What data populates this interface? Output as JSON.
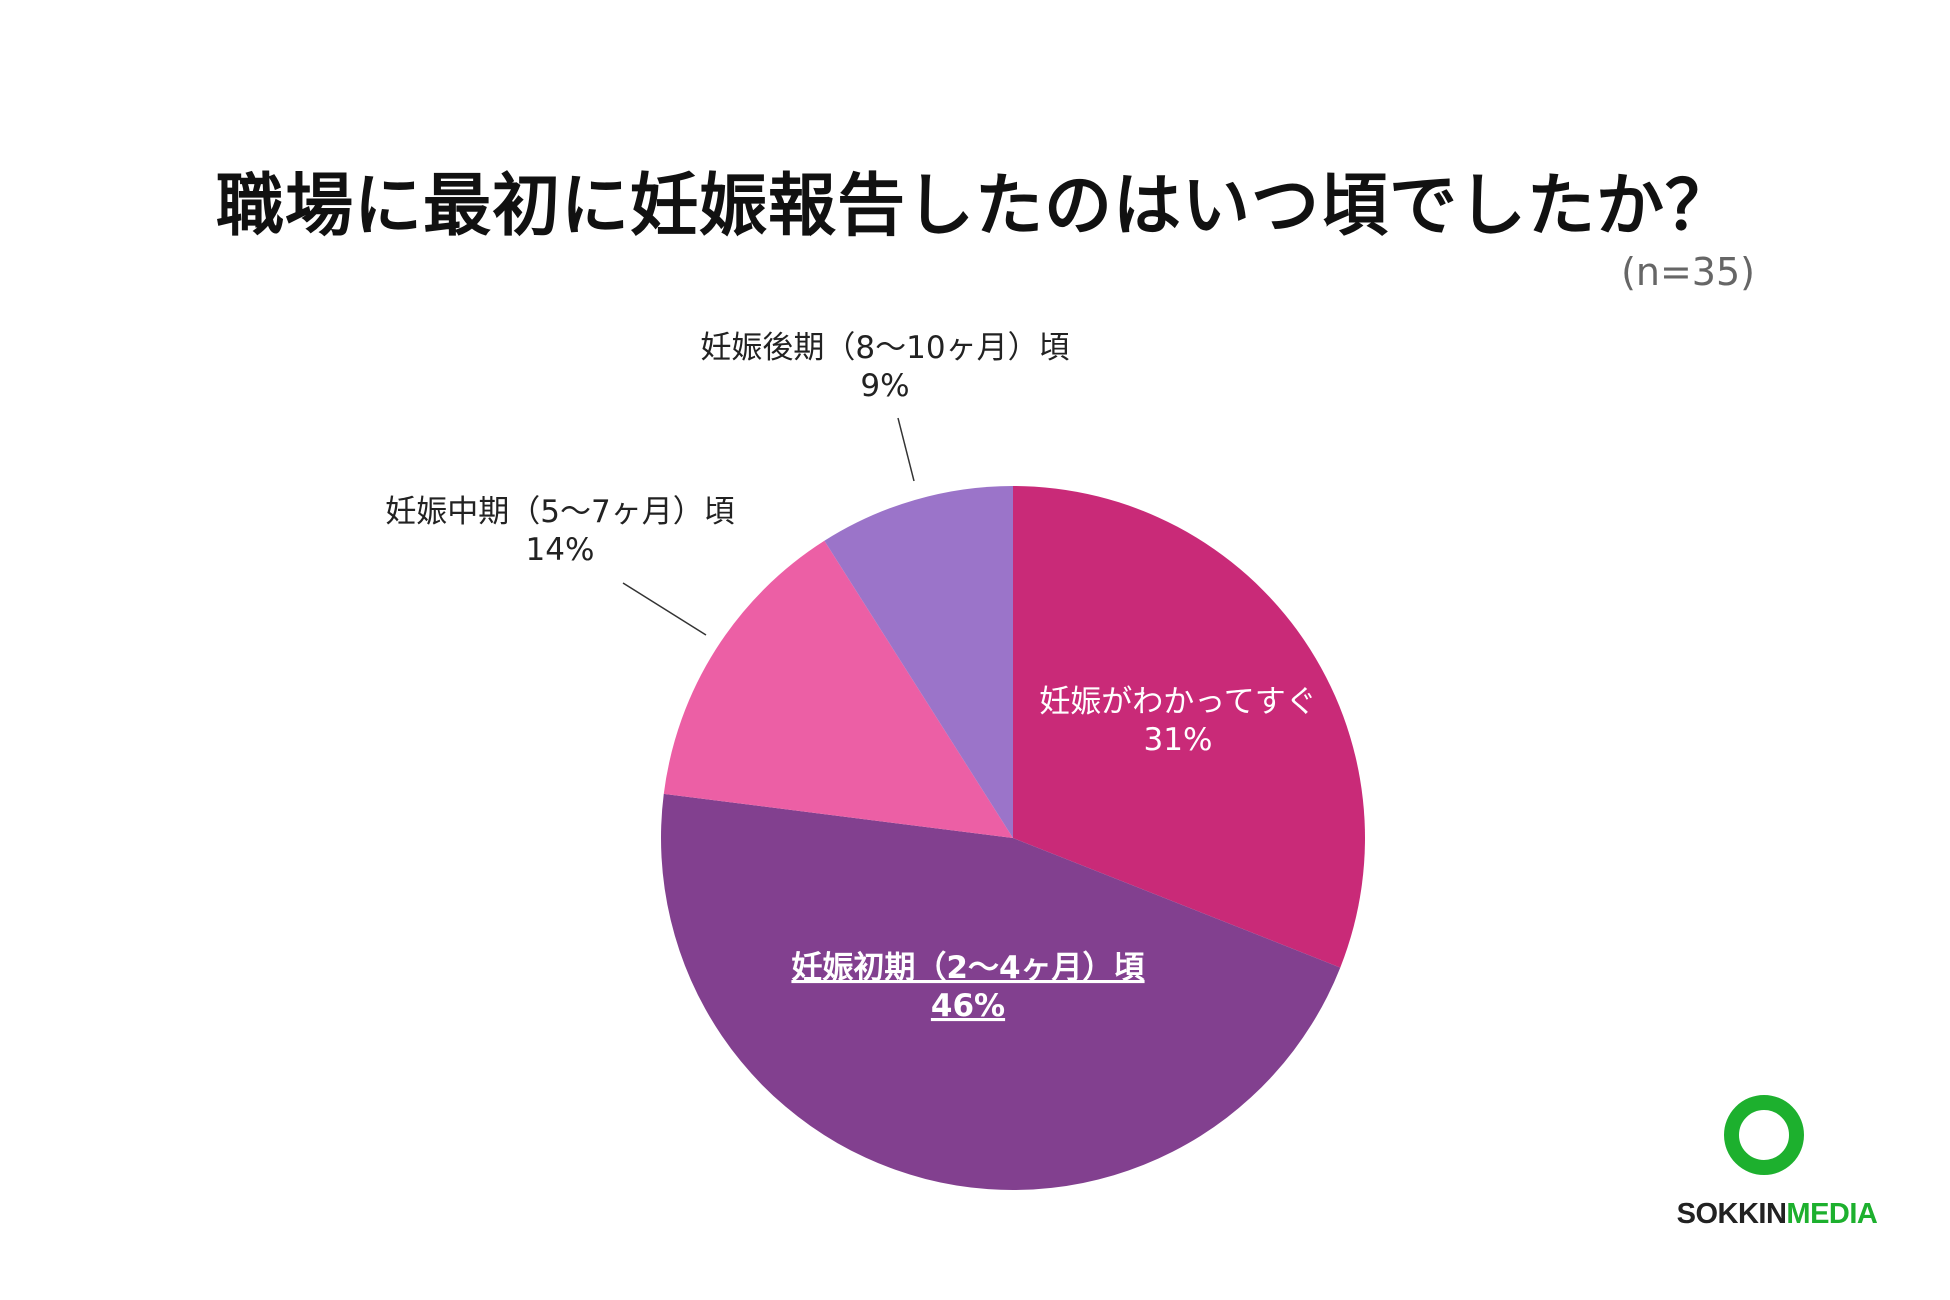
{
  "title": "職場に最初に妊娠報告したのはいつ頃でしたか？",
  "sample_size": "(n=35)",
  "chart_data": {
    "type": "pie",
    "title": "職場に最初に妊娠報告したのはいつ頃でしたか？",
    "slices": [
      {
        "label": "妊娠がわかってすぐ",
        "value": 31,
        "display": "31%",
        "color": "#c92a78"
      },
      {
        "label": "妊娠初期（2〜4ヶ月）頃",
        "value": 46,
        "display": "46%",
        "color": "#82408f"
      },
      {
        "label": "妊娠中期（5〜7ヶ月）頃",
        "value": 14,
        "display": "14%",
        "color": "#ec5fa5"
      },
      {
        "label": "妊娠後期（8〜10ヶ月）頃",
        "value": 9,
        "display": "9%",
        "color": "#9b74c9"
      }
    ]
  },
  "logo": {
    "part1": "SOKKIN",
    "part2": "MEDIA"
  }
}
